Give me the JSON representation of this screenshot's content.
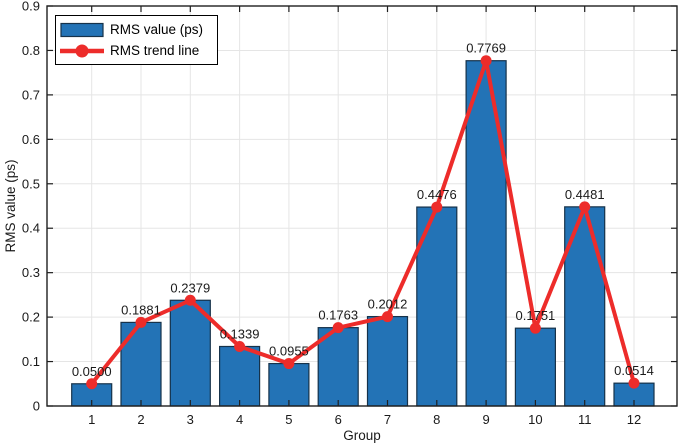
{
  "chart_data": {
    "type": "bar",
    "title": "",
    "xlabel": "Group",
    "ylabel": "RMS value (ps)",
    "categories": [
      1,
      2,
      3,
      4,
      5,
      6,
      7,
      8,
      9,
      10,
      11,
      12
    ],
    "series": [
      {
        "name": "RMS value (ps)",
        "type": "bar",
        "values": [
          0.05,
          0.1881,
          0.2379,
          0.1339,
          0.0955,
          0.1763,
          0.2012,
          0.4476,
          0.7769,
          0.1751,
          0.4481,
          0.0514
        ]
      },
      {
        "name": "RMS trend line",
        "type": "line",
        "values": [
          0.05,
          0.1881,
          0.2379,
          0.1339,
          0.0955,
          0.1763,
          0.2012,
          0.4476,
          0.7769,
          0.1751,
          0.4481,
          0.0514
        ]
      }
    ],
    "value_labels": [
      "0.0500",
      "0.1881",
      "0.2379",
      "0.1339",
      "0.0955",
      "0.1763",
      "0.2012",
      "0.4476",
      "0.7769",
      "0.1751",
      "0.4481",
      "0.0514"
    ],
    "ylim": [
      0,
      0.9
    ],
    "ytick_step": 0.1,
    "grid": true,
    "legend_position": "top-left"
  },
  "legend": {
    "items": [
      {
        "label": "RMS value (ps)",
        "swatch": "bar"
      },
      {
        "label": "RMS trend line",
        "swatch": "line-marker"
      }
    ]
  },
  "colors": {
    "bar_fill": "#2373b6",
    "bar_edge": "#16324a",
    "line": "#ed2c2a",
    "marker": "#ed2c2a",
    "grid": "#e5e5e5",
    "axis": "#1f1f1f",
    "text": "#1a1a1a",
    "background": "#ffffff"
  }
}
